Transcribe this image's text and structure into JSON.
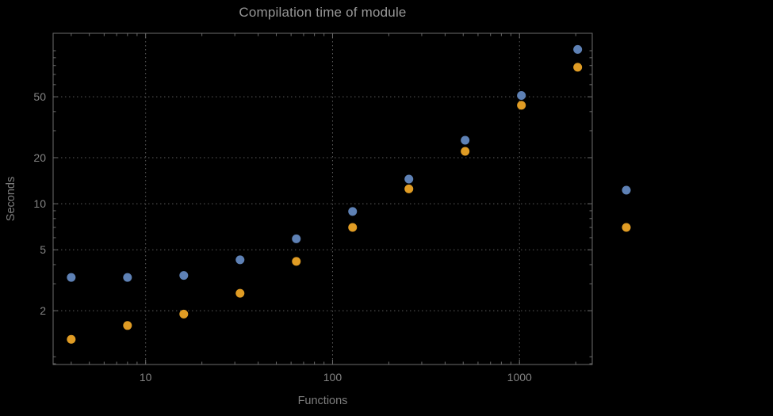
{
  "chart_data": {
    "type": "scatter",
    "title": "Compilation time of module",
    "xlabel": "Functions",
    "ylabel": "Seconds",
    "x_scale": "log",
    "y_scale": "log",
    "xlim": [
      3.2,
      2450
    ],
    "ylim": [
      0.89,
      130
    ],
    "grid": true,
    "x_ticks": [
      {
        "value": 10,
        "label": "10"
      },
      {
        "value": 100,
        "label": "100"
      },
      {
        "value": 1000,
        "label": "1000"
      }
    ],
    "y_ticks": [
      {
        "value": 2,
        "label": "2"
      },
      {
        "value": 5,
        "label": "5"
      },
      {
        "value": 10,
        "label": "10"
      },
      {
        "value": 20,
        "label": "20"
      },
      {
        "value": 50,
        "label": "50"
      }
    ],
    "series": [
      {
        "name": "series-1-blue",
        "color": "#5E81B5",
        "x": [
          4,
          8,
          16,
          32,
          64,
          128,
          256,
          512,
          1024,
          2048
        ],
        "y": [
          3.3,
          3.3,
          3.4,
          4.3,
          5.9,
          8.9,
          14.5,
          26,
          51,
          102
        ]
      },
      {
        "name": "series-2-orange",
        "color": "#E09C24",
        "x": [
          4,
          8,
          16,
          32,
          64,
          128,
          256,
          512,
          1024,
          2048
        ],
        "y": [
          1.3,
          1.6,
          1.9,
          2.6,
          4.2,
          7.0,
          12.5,
          22,
          44,
          78
        ]
      }
    ],
    "legend": {
      "position": "right-outside",
      "labels_visible": false,
      "marker_colors": [
        "#5E81B5",
        "#E09C24"
      ]
    },
    "colors": {
      "background": "#000000",
      "frame": "#6b6b6b",
      "grid": "#5c5c5c",
      "title": "#969696",
      "tick_label": "#848484",
      "axis_label": "#7e7e7e"
    }
  }
}
